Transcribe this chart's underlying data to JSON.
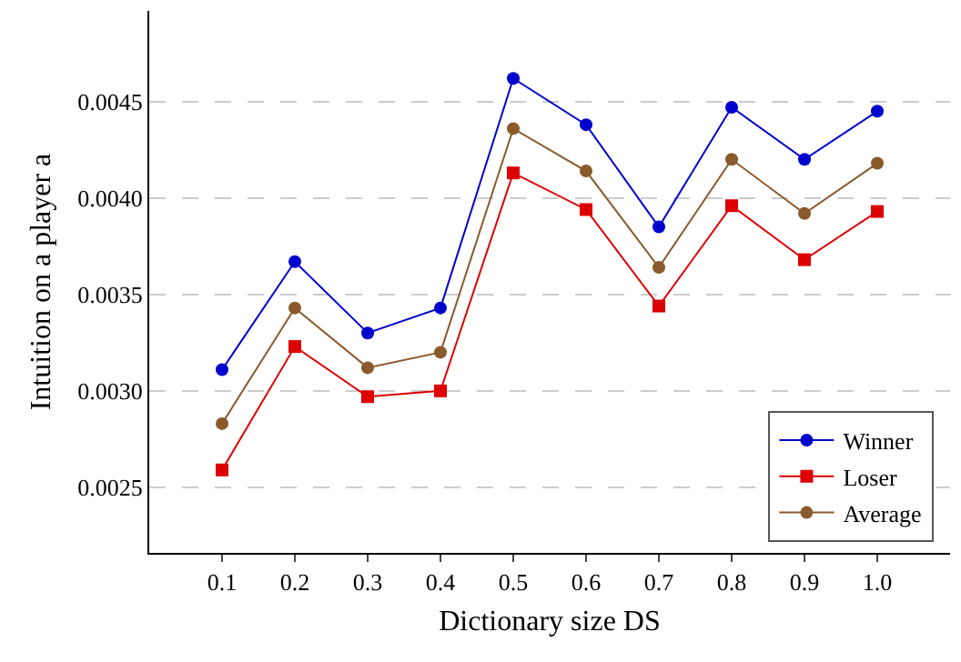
{
  "chart_data": {
    "type": "line",
    "xlabel": "Dictionary size DS",
    "ylabel": "Intuition on a player a",
    "x": [
      0.1,
      0.2,
      0.3,
      0.4,
      0.5,
      0.6,
      0.7,
      0.8,
      0.9,
      1.0
    ],
    "series": [
      {
        "name": "Winner",
        "color": "#0000cc",
        "marker": "circle",
        "values": [
          0.00311,
          0.00367,
          0.0033,
          0.00343,
          0.00462,
          0.00438,
          0.00385,
          0.00447,
          0.0042,
          0.00445
        ]
      },
      {
        "name": "Loser",
        "color": "#dd0000",
        "marker": "square",
        "values": [
          0.00259,
          0.00323,
          0.00297,
          0.003,
          0.00413,
          0.00394,
          0.00344,
          0.00396,
          0.00368,
          0.00393
        ]
      },
      {
        "name": "Average",
        "color": "#8b5a2b",
        "marker": "circle",
        "values": [
          0.00283,
          0.00343,
          0.00312,
          0.0032,
          0.00436,
          0.00414,
          0.00364,
          0.0042,
          0.00392,
          0.00418
        ]
      }
    ],
    "xlim": [
      0,
      1.1
    ],
    "ylim": [
      0.00216,
      0.00497
    ],
    "xticks": [
      0.1,
      0.2,
      0.3,
      0.4,
      0.5,
      0.6,
      0.7,
      0.8,
      0.9,
      {
        "value": 1.0,
        "label": "1.0"
      }
    ],
    "yticks": [
      0.0025,
      {
        "value": 0.003,
        "label": "0.0030"
      },
      0.0035,
      {
        "value": 0.004,
        "label": "0.0040"
      },
      0.0045
    ],
    "grid": "y",
    "legend": "bottom right",
    "line_style": "solid"
  }
}
